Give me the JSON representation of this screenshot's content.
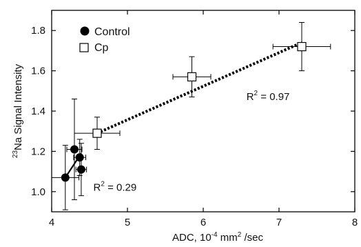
{
  "chart_data": {
    "type": "scatter",
    "xlabel": {
      "text": "ADC, 10",
      "sup": "-4",
      "mid": " mm",
      "sup2": "2",
      "end": " /sec"
    },
    "ylabel": {
      "sup": "23",
      "text": "Na Signal Intensity"
    },
    "xlim": [
      4,
      8
    ],
    "ylim": [
      0.9,
      1.9
    ],
    "xticks": [
      4,
      5,
      6,
      7,
      8
    ],
    "yticks": [
      1.0,
      1.2,
      1.4,
      1.6,
      1.8
    ],
    "ytick_labels": [
      "1.0",
      "1.2",
      "1.4",
      "1.6",
      "1.8"
    ],
    "legend": {
      "position": "top-left"
    },
    "series": [
      {
        "name": "Control",
        "marker": "filled-circle",
        "points": [
          {
            "x": 4.18,
            "y": 1.07,
            "xerr": 0.18,
            "yerr": 0.16
          },
          {
            "x": 4.3,
            "y": 1.21,
            "xerr": 0.1,
            "yerr": 0.25
          },
          {
            "x": 4.37,
            "y": 1.17,
            "xerr": 0.08,
            "yerr": 0.09
          },
          {
            "x": 4.39,
            "y": 1.11,
            "xerr": 0.07,
            "yerr": 0.13
          }
        ],
        "fit": {
          "x": [
            4.18,
            4.39
          ],
          "y": [
            1.07,
            1.19
          ],
          "r2_label": "0.29",
          "style": "solid"
        }
      },
      {
        "name": "Cp",
        "marker": "open-square",
        "points": [
          {
            "x": 4.6,
            "y": 1.29,
            "xerr": 0.3,
            "yerr": 0.08
          },
          {
            "x": 5.85,
            "y": 1.57,
            "xerr": 0.25,
            "yerr": 0.1
          },
          {
            "x": 7.3,
            "y": 1.72,
            "xerr": 0.38,
            "yerr": 0.12
          }
        ],
        "fit": {
          "x": [
            4.6,
            7.3
          ],
          "y": [
            1.29,
            1.74
          ],
          "r2_label": "0.97",
          "style": "dotted"
        }
      }
    ],
    "annotations": [
      {
        "prefix": "R",
        "sup": "2",
        "value": " = 0.97",
        "at": [
          6.57,
          1.455
        ]
      },
      {
        "prefix": "R",
        "sup": "2",
        "value": " = 0.29",
        "at": [
          4.55,
          1.005
        ]
      }
    ]
  }
}
